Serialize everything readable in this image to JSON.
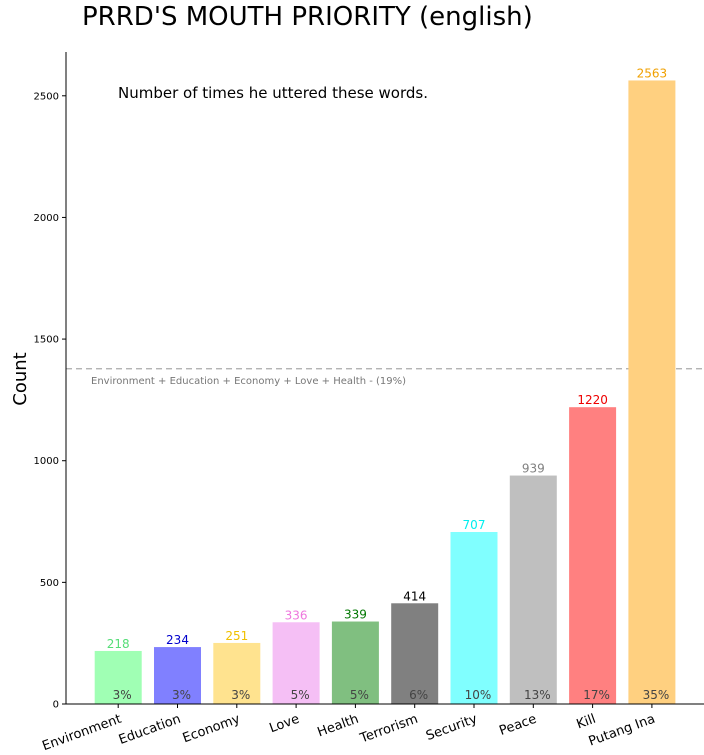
{
  "chart_data": {
    "type": "bar",
    "title": "PRRD'S MOUTH PRIORITY (english)",
    "subtitle": "Number of times he uttered these words.",
    "xlabel": "",
    "ylabel": "Count",
    "ylim": [
      0,
      2680
    ],
    "yticks": [
      0,
      500,
      1000,
      1500,
      2000,
      2500
    ],
    "categories": [
      "Environment",
      "Education",
      "Economy",
      "Love",
      "Health",
      "Terrorism",
      "Security",
      "Peace",
      "Kill",
      "Putang Ina"
    ],
    "values": [
      218,
      234,
      251,
      336,
      339,
      414,
      707,
      939,
      1220,
      2563
    ],
    "value_labels": [
      "218",
      "234",
      "251",
      "336",
      "339",
      "414",
      "707",
      "939",
      "1220",
      "2563"
    ],
    "percent_labels": [
      "3%",
      "3%",
      "3%",
      "5%",
      "5%",
      "6%",
      "10%",
      "13%",
      "17%",
      "35%"
    ],
    "bar_colors": [
      "#a0ffb4",
      "#8080ff",
      "#ffe38f",
      "#f5bff5",
      "#80bf80",
      "#808080",
      "#80ffff",
      "#bfbfbf",
      "#ff8080",
      "#ffd080"
    ],
    "label_colors": [
      "#55dd77",
      "#0000cc",
      "#f0c000",
      "#ee77dd",
      "#007700",
      "#000000",
      "#00eeee",
      "#808080",
      "#ee0000",
      "#f0a000"
    ],
    "reference_line": {
      "value": 1378,
      "label": "Environment + Education + Economy + Love + Health - (19%)",
      "style": "dashed",
      "color": "#aaaaaa"
    },
    "grid": false,
    "legend": "none"
  }
}
